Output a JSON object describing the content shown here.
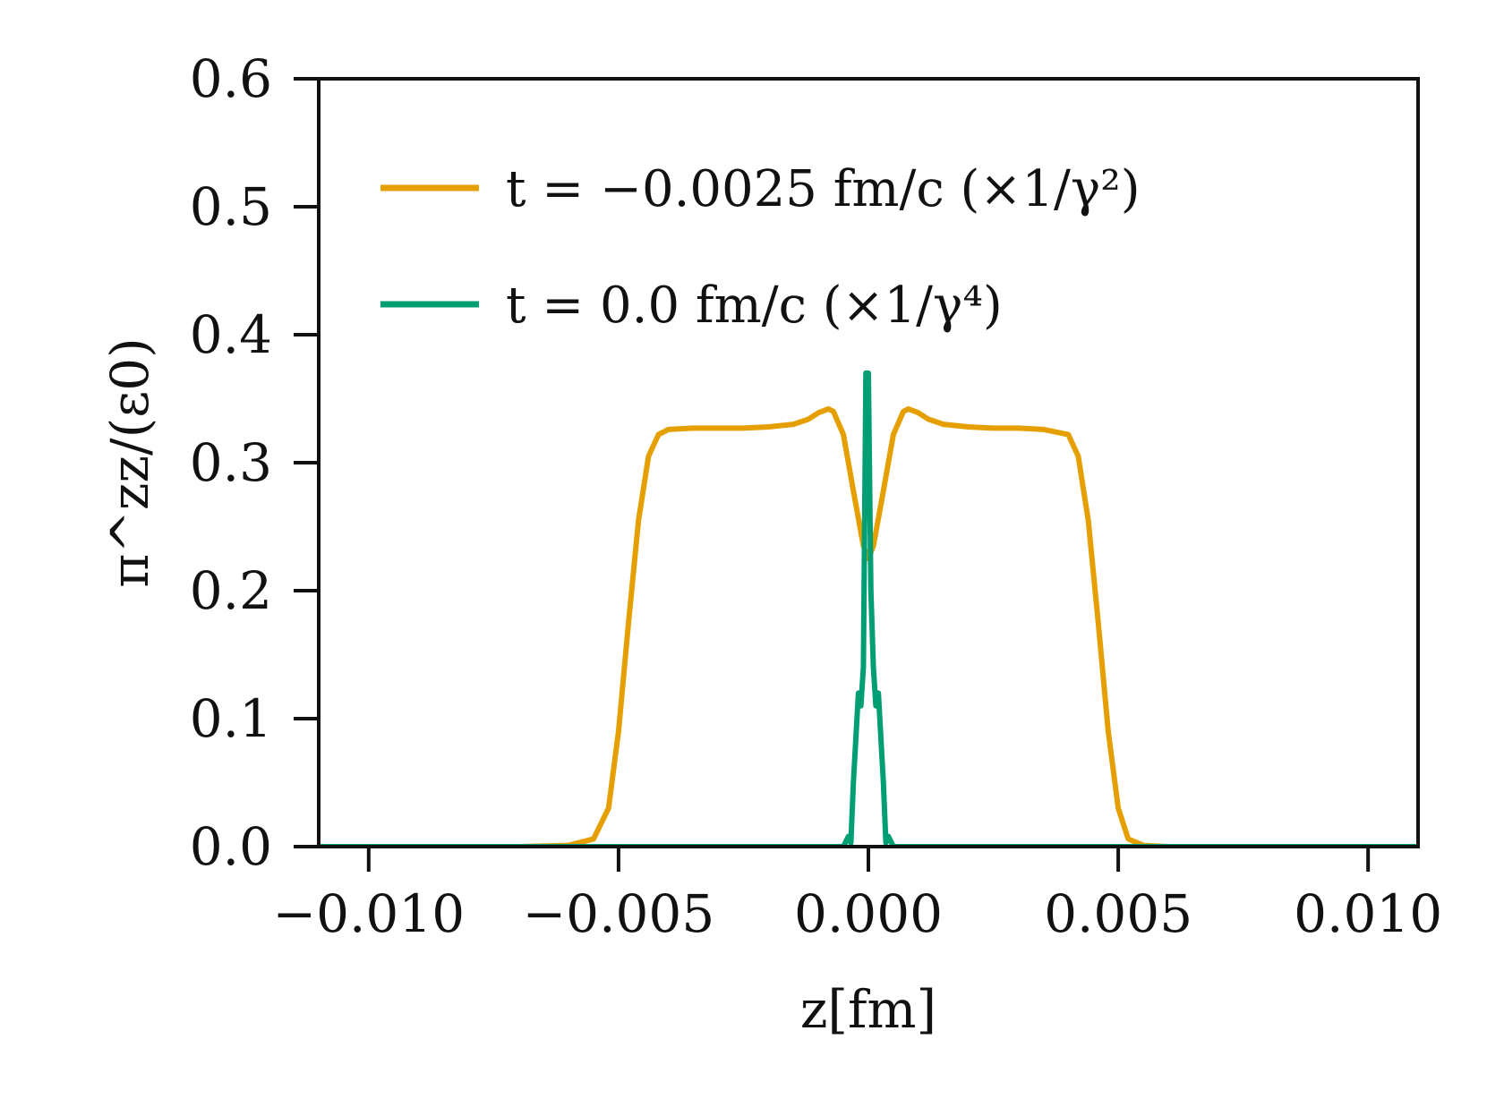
{
  "chart_data": {
    "type": "line",
    "title": "",
    "xlabel": "z[fm]",
    "ylabel": "π^zz/(ε0)",
    "xlim": [
      -0.011,
      0.011
    ],
    "ylim": [
      0.0,
      0.6
    ],
    "xticks": [
      -0.01,
      -0.005,
      0.0,
      0.005,
      0.01
    ],
    "xtick_labels": [
      "−0.010",
      "−0.005",
      "0.000",
      "0.005",
      "0.010"
    ],
    "yticks": [
      0.0,
      0.1,
      0.2,
      0.3,
      0.4,
      0.5,
      0.6
    ],
    "ytick_labels": [
      "0.0",
      "0.1",
      "0.2",
      "0.3",
      "0.4",
      "0.5",
      "0.6"
    ],
    "grid": false,
    "legend_position": "upper-left",
    "series": [
      {
        "name": "t = −0.0025 fm/c (×1/γ²)",
        "color": "#E69F00",
        "x": [
          -0.011,
          -0.007,
          -0.006,
          -0.0055,
          -0.0052,
          -0.005,
          -0.0048,
          -0.0046,
          -0.0044,
          -0.0042,
          -0.004,
          -0.0035,
          -0.003,
          -0.0025,
          -0.002,
          -0.0015,
          -0.0012,
          -0.001,
          -0.0008,
          -0.0007,
          -0.0005,
          -0.0003,
          -0.0001,
          0.0,
          0.0001,
          0.0003,
          0.0005,
          0.0007,
          0.0008,
          0.001,
          0.0012,
          0.0015,
          0.002,
          0.0025,
          0.003,
          0.0035,
          0.004,
          0.0042,
          0.0044,
          0.0046,
          0.0048,
          0.005,
          0.0052,
          0.0055,
          0.006,
          0.007,
          0.011
        ],
        "y": [
          0.0,
          0.0,
          0.001,
          0.006,
          0.03,
          0.09,
          0.175,
          0.255,
          0.305,
          0.322,
          0.326,
          0.327,
          0.327,
          0.327,
          0.328,
          0.33,
          0.334,
          0.339,
          0.342,
          0.34,
          0.322,
          0.278,
          0.235,
          0.225,
          0.235,
          0.278,
          0.322,
          0.34,
          0.342,
          0.339,
          0.334,
          0.33,
          0.328,
          0.327,
          0.327,
          0.326,
          0.322,
          0.305,
          0.255,
          0.175,
          0.09,
          0.03,
          0.006,
          0.001,
          0.0,
          0.0,
          0.0
        ]
      },
      {
        "name": "t = 0.0 fm/c (×1/γ⁴)",
        "color": "#009E73",
        "x": [
          -0.011,
          -0.0006,
          -0.0005,
          -0.0004,
          -0.00035,
          -0.0003,
          -0.0002,
          -0.00015,
          -0.0001,
          -5e-05,
          0.0,
          5e-05,
          0.0001,
          0.00015,
          0.0002,
          0.0003,
          0.00035,
          0.0004,
          0.0005,
          0.0006,
          0.011
        ],
        "y": [
          0.0,
          0.0,
          0.0,
          0.008,
          0.003,
          0.05,
          0.12,
          0.11,
          0.14,
          0.37,
          0.37,
          0.2,
          0.14,
          0.11,
          0.12,
          0.05,
          0.003,
          0.008,
          0.0,
          0.0,
          0.0
        ]
      }
    ]
  }
}
